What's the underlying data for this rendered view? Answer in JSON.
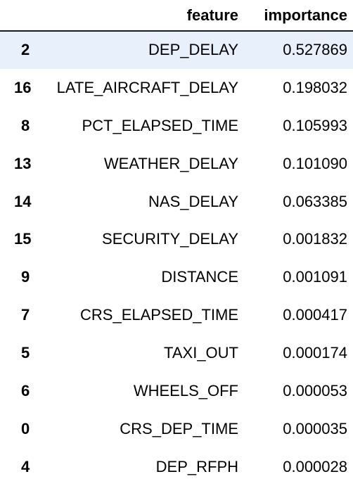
{
  "table": {
    "columns": [
      "",
      "feature",
      "importance"
    ],
    "rows": [
      {
        "index": "2",
        "feature": "DEP_DELAY",
        "importance": "0.527869"
      },
      {
        "index": "16",
        "feature": "LATE_AIRCRAFT_DELAY",
        "importance": "0.198032"
      },
      {
        "index": "8",
        "feature": "PCT_ELAPSED_TIME",
        "importance": "0.105993"
      },
      {
        "index": "13",
        "feature": "WEATHER_DELAY",
        "importance": "0.101090"
      },
      {
        "index": "14",
        "feature": "NAS_DELAY",
        "importance": "0.063385"
      },
      {
        "index": "15",
        "feature": "SECURITY_DELAY",
        "importance": "0.001832"
      },
      {
        "index": "9",
        "feature": "DISTANCE",
        "importance": "0.001091"
      },
      {
        "index": "7",
        "feature": "CRS_ELAPSED_TIME",
        "importance": "0.000417"
      },
      {
        "index": "5",
        "feature": "TAXI_OUT",
        "importance": "0.000174"
      },
      {
        "index": "6",
        "feature": "WHEELS_OFF",
        "importance": "0.000053"
      },
      {
        "index": "0",
        "feature": "CRS_DEP_TIME",
        "importance": "0.000035"
      },
      {
        "index": "4",
        "feature": "DEP_RFPH",
        "importance": "0.000028"
      }
    ]
  },
  "colors": {
    "highlight_row": "#e8f1fb",
    "header_rule": "#1a1a1a"
  }
}
